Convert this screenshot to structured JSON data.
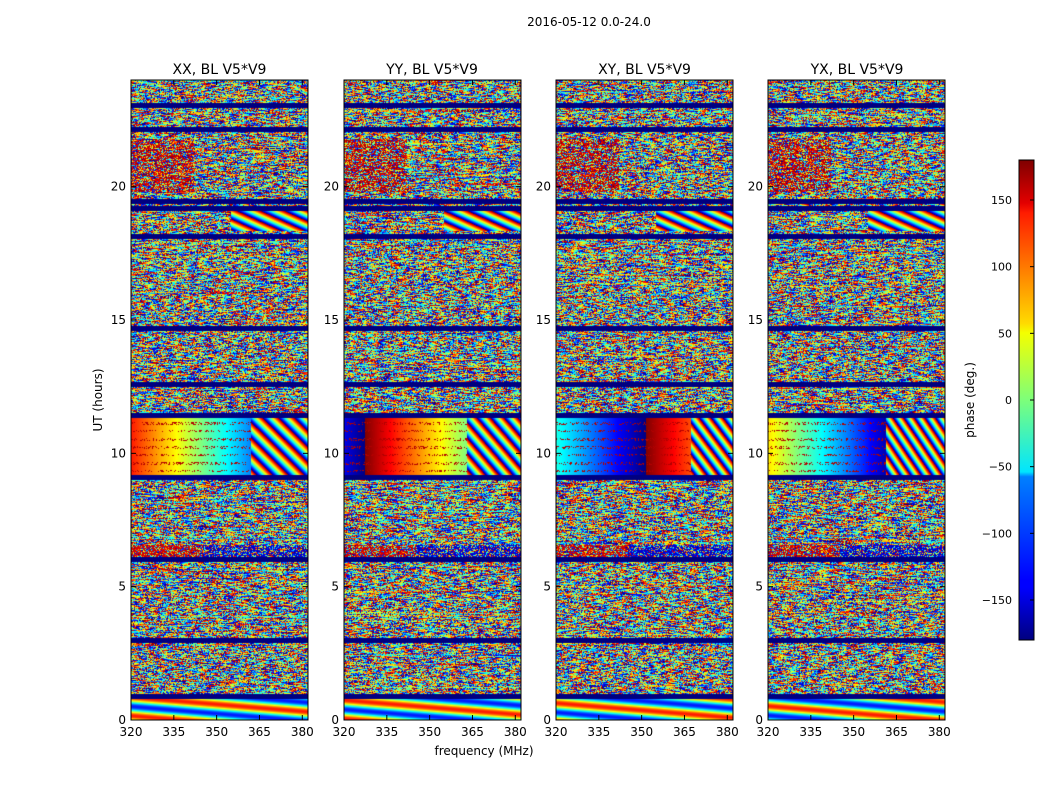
{
  "chart_data": {
    "type": "heatmap",
    "suptitle": "2016-05-12 0.0-24.0",
    "panels": [
      {
        "title": "XX, BL V5*V9",
        "xlabel": "",
        "ylabel": "UT (hours)"
      },
      {
        "title": "YY, BL V5*V9",
        "xlabel": "frequency (MHz)",
        "ylabel": ""
      },
      {
        "title": "XY, BL V5*V9",
        "xlabel": "",
        "ylabel": ""
      },
      {
        "title": "YX, BL V5*V9",
        "xlabel": "",
        "ylabel": ""
      }
    ],
    "xlim": [
      320,
      382
    ],
    "ylim": [
      0,
      24
    ],
    "xticks": [
      320,
      335,
      350,
      365,
      380
    ],
    "xtick_labels": [
      "320",
      "335",
      "350",
      "365",
      "380"
    ],
    "yticks": [
      0,
      5,
      10,
      15,
      20
    ],
    "ytick_labels": [
      "0",
      "5",
      "10",
      "15",
      "20"
    ],
    "colorbar": {
      "label": "phase (deg.)",
      "range": [
        -180,
        180
      ],
      "ticks": [
        -150,
        -100,
        -50,
        0,
        50,
        100,
        150
      ],
      "tick_labels": [
        "−150",
        "−100",
        "−50",
        "0",
        "50",
        "100",
        "150"
      ],
      "colormap": "jet"
    },
    "features": {
      "flagged_scans_hours": [
        23.05,
        22.15,
        19.2,
        19.45,
        18.15,
        14.7,
        12.6,
        11.45,
        9.1,
        6.05,
        3.0,
        0.9
      ],
      "coherent_block_hours": [
        9.2,
        11.5
      ],
      "coherent_block_wrap_mhz": [
        362,
        363,
        367,
        361
      ],
      "fringe_band_hours": [
        18.35,
        19.1
      ],
      "noise_seed": 20160512
    }
  }
}
